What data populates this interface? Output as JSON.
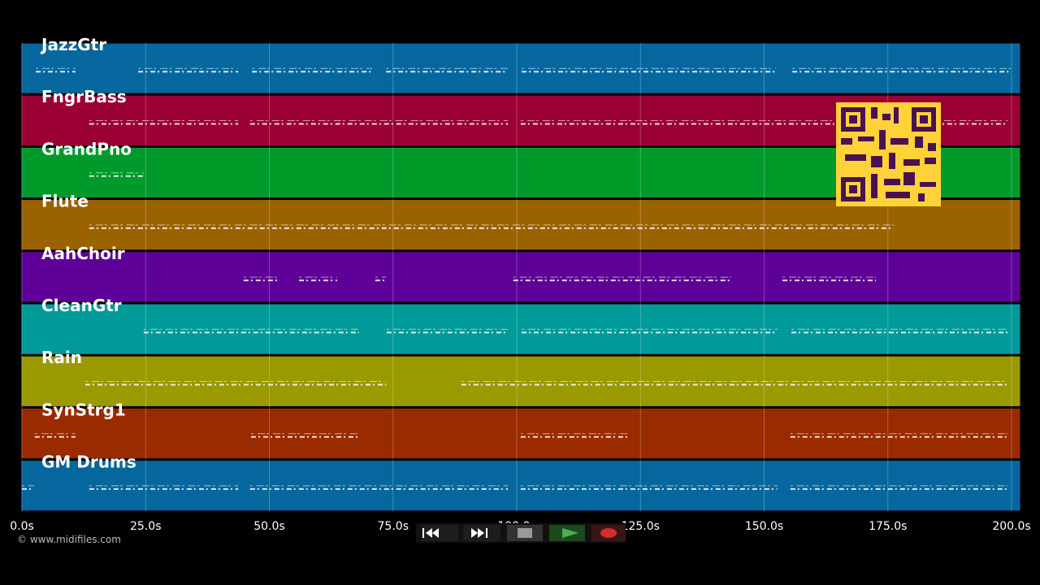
{
  "tracks": [
    {
      "name": "JazzGtr",
      "color": "#05679e",
      "segments": [
        [
          2.8,
          10.8
        ],
        [
          23.5,
          43.7
        ],
        [
          46.5,
          70.8
        ],
        [
          73.6,
          98.2
        ],
        [
          101,
          152.4
        ],
        [
          155.7,
          200
        ]
      ]
    },
    {
      "name": "FngrBass",
      "color": "#9b0034",
      "segments": [
        [
          13.6,
          43.7
        ],
        [
          46.1,
          98.2
        ],
        [
          100.8,
          199.2
        ]
      ]
    },
    {
      "name": "GrandPno",
      "color": "#009a2b",
      "segments": [
        [
          13.6,
          24.6
        ]
      ]
    },
    {
      "name": "Flute",
      "color": "#9a6300",
      "segments": [
        [
          13.6,
          176.2
        ]
      ]
    },
    {
      "name": "AahChoir",
      "color": "#5e0098",
      "segments": [
        [
          44.8,
          52.2
        ],
        [
          56,
          63.7
        ],
        [
          71.4,
          73.6
        ],
        [
          99.3,
          143.3
        ],
        [
          153.7,
          172.6
        ]
      ]
    },
    {
      "name": "CleanGtr",
      "color": "#009a9a",
      "segments": [
        [
          24.6,
          68.1
        ],
        [
          73.7,
          98.2
        ],
        [
          101,
          152.7
        ],
        [
          155.5,
          199.2
        ]
      ]
    },
    {
      "name": "Rain",
      "color": "#9a9900",
      "segments": [
        [
          12.8,
          73.6
        ],
        [
          88.8,
          199.2
        ]
      ]
    },
    {
      "name": "SynStrg1",
      "color": "#9a2a00",
      "segments": [
        [
          2.6,
          10.8
        ],
        [
          46.3,
          68.1
        ],
        [
          100.8,
          122.5
        ],
        [
          155.3,
          199.2
        ]
      ]
    },
    {
      "name": "GM Drums",
      "color": "#05679e",
      "segments": [
        [
          0,
          2.5
        ],
        [
          13.6,
          43.7
        ],
        [
          46.1,
          98.2
        ],
        [
          100.8,
          152.7
        ],
        [
          155.3,
          199.2
        ]
      ]
    }
  ],
  "time_axis": {
    "xlim": [
      0,
      200
    ],
    "ticks": [
      {
        "value": 0,
        "label": "0.0s"
      },
      {
        "value": 25,
        "label": "25.0s"
      },
      {
        "value": 50,
        "label": "50.0s"
      },
      {
        "value": 75,
        "label": "75.0s"
      },
      {
        "value": 100,
        "label": "100.0s"
      },
      {
        "value": 125,
        "label": "125.0s"
      },
      {
        "value": 150,
        "label": "150.0s"
      },
      {
        "value": 175,
        "label": "175.0s"
      },
      {
        "value": 200,
        "label": "200.0s"
      }
    ]
  },
  "footer": "© www.midifiles.com"
}
